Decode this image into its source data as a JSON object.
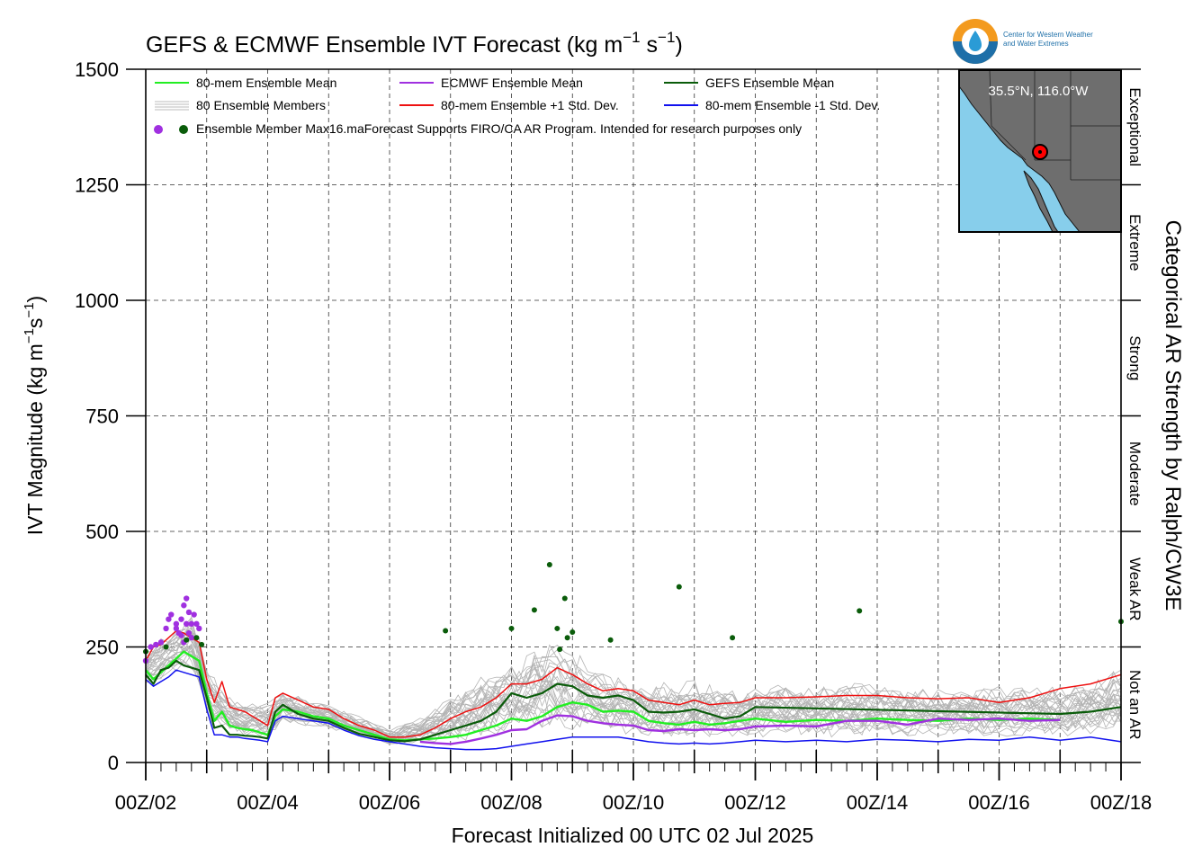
{
  "chart_data": {
    "type": "line",
    "title_text": "GEFS & ECMWF Ensemble IVT Forecast (kg m",
    "title_sup1": "−1",
    "title_mid": " s",
    "title_sup2": "−1",
    "title_end": ")",
    "ylabel_text": "IVT Magnitude (kg m",
    "ylabel_sup1": "−1",
    "ylabel_mid": "s",
    "ylabel_sup2": "−1",
    "ylabel_end": ")",
    "xlabel": "Forecast Initialized 00 UTC 02 Jul 2025",
    "right_axis_label": "Categorical AR Strength by Ralph/CW3E",
    "x_start": "2025-07-02T00Z",
    "x_end": "2025-07-18T00Z",
    "ylim": [
      0,
      1500
    ],
    "y_ticks": [
      0,
      250,
      500,
      750,
      1000,
      1250,
      1500
    ],
    "y_tick_labels": [
      "0",
      "250",
      "500",
      "750",
      "1000",
      "1250",
      "1500"
    ],
    "x_tick_days": [
      2,
      4,
      6,
      8,
      10,
      12,
      14,
      16,
      18
    ],
    "x_tick_labels": [
      "00Z/02",
      "00Z/04",
      "00Z/06",
      "00Z/08",
      "00Z/10",
      "00Z/12",
      "00Z/14",
      "00Z/16",
      "00Z/18"
    ],
    "grid": true,
    "categories": [
      {
        "label": "Not an AR",
        "min": 0,
        "max": 250
      },
      {
        "label": "Weak AR",
        "min": 250,
        "max": 500
      },
      {
        "label": "Moderate",
        "min": 500,
        "max": 750
      },
      {
        "label": "Strong",
        "min": 750,
        "max": 1000
      },
      {
        "label": "Extreme",
        "min": 1000,
        "max": 1250
      },
      {
        "label": "Exceptional",
        "min": 1250,
        "max": 1500
      }
    ],
    "legend": {
      "placement": "top-left",
      "items": [
        {
          "label": "80-mem Ensemble Mean",
          "color": "#22ee22",
          "kind": "line"
        },
        {
          "label": "ECMWF Ensemble Mean",
          "color": "#a030e0",
          "kind": "line"
        },
        {
          "label": "GEFS Ensemble Mean",
          "color": "#0a5c0a",
          "kind": "line"
        },
        {
          "label": "80 Ensemble Members",
          "color": "#aaaaaa",
          "kind": "multiline"
        },
        {
          "label": "80-mem Ensemble +1 Std. Dev.",
          "color": "#ee1111",
          "kind": "line"
        },
        {
          "label": "80-mem Ensemble -1 Std. Dev.",
          "color": "#1111ee",
          "kind": "line"
        }
      ],
      "max_label": "Ensemble Member Max",
      "note": "16.maForecast Supports FIRO/CA AR Program. Intended for research purposes only"
    },
    "location_label": "35.5°N, 116.0°W",
    "logo_text_1": "Center for Western Weather",
    "logo_text_2": "and Water Extremes",
    "series": [
      {
        "name": "80-mem Ensemble Mean",
        "color": "#22ee22",
        "x": [
          2,
          2.125,
          2.25,
          2.375,
          2.5,
          2.625,
          2.75,
          2.875,
          3,
          3.125,
          3.25,
          3.375,
          3.5,
          3.625,
          3.75,
          3.875,
          4,
          4.125,
          4.25,
          4.5,
          4.75,
          5,
          5.25,
          5.5,
          5.75,
          6,
          6.25,
          6.5,
          6.75,
          7,
          7.25,
          7.5,
          7.75,
          8,
          8.25,
          8.5,
          8.75,
          9,
          9.25,
          9.5,
          9.75,
          10,
          10.25,
          10.5,
          10.75,
          11,
          11.25,
          11.5,
          11.75,
          12,
          12.5,
          13,
          13.5,
          14,
          14.5,
          15,
          15.5,
          16,
          16.5,
          17
        ],
        "y": [
          200,
          180,
          195,
          210,
          225,
          240,
          230,
          220,
          150,
          90,
          110,
          80,
          75,
          72,
          70,
          65,
          60,
          100,
          115,
          110,
          100,
          95,
          80,
          70,
          60,
          50,
          48,
          50,
          52,
          55,
          60,
          70,
          80,
          95,
          90,
          100,
          120,
          130,
          125,
          110,
          112,
          110,
          90,
          85,
          82,
          88,
          82,
          85,
          90,
          95,
          88,
          92,
          90,
          95,
          92,
          90,
          95,
          92,
          95,
          92
        ]
      },
      {
        "name": "ECMWF Ensemble Mean",
        "color": "#a030e0",
        "x": [
          6.5,
          6.75,
          7,
          7.25,
          7.5,
          7.75,
          8,
          8.25,
          8.5,
          8.75,
          9,
          9.25,
          9.5,
          9.75,
          10,
          10.25,
          10.5,
          10.75,
          11,
          11.25,
          11.5,
          11.75,
          12,
          12.5,
          13,
          13.5,
          14,
          14.5,
          15,
          15.5,
          16,
          16.5,
          17
        ],
        "y": [
          45,
          42,
          40,
          45,
          52,
          60,
          70,
          72,
          90,
          102,
          100,
          90,
          85,
          82,
          80,
          70,
          68,
          72,
          70,
          72,
          70,
          72,
          78,
          80,
          78,
          90,
          90,
          82,
          95,
          92,
          95,
          90,
          92
        ]
      },
      {
        "name": "GEFS Ensemble Mean",
        "color": "#0a5c0a",
        "x": [
          2,
          2.125,
          2.25,
          2.375,
          2.5,
          2.625,
          2.75,
          2.875,
          3,
          3.125,
          3.25,
          3.375,
          3.5,
          3.625,
          3.75,
          3.875,
          4,
          4.125,
          4.25,
          4.5,
          4.75,
          5,
          5.25,
          5.5,
          5.75,
          6,
          6.25,
          6.5,
          6.75,
          7,
          7.25,
          7.5,
          7.75,
          8,
          8.25,
          8.5,
          8.75,
          9,
          9.25,
          9.5,
          9.75,
          10,
          10.25,
          10.5,
          10.75,
          11,
          11.25,
          11.5,
          11.75,
          12,
          17,
          17.5,
          18
        ],
        "y": [
          190,
          170,
          200,
          205,
          220,
          210,
          205,
          200,
          140,
          75,
          80,
          60,
          60,
          58,
          57,
          55,
          52,
          110,
          125,
          105,
          95,
          90,
          75,
          62,
          55,
          48,
          46,
          50,
          60,
          70,
          80,
          90,
          110,
          150,
          140,
          150,
          170,
          165,
          145,
          140,
          145,
          135,
          110,
          108,
          110,
          115,
          105,
          95,
          100,
          120,
          105,
          110,
          120
        ]
      },
      {
        "name": "80-mem Ensemble +1 Std. Dev.",
        "color": "#ee1111",
        "x": [
          2,
          2.125,
          2.25,
          2.375,
          2.5,
          2.625,
          2.75,
          2.875,
          3,
          3.125,
          3.25,
          3.375,
          3.5,
          3.625,
          3.75,
          3.875,
          4,
          4.125,
          4.25,
          4.5,
          4.75,
          5,
          5.25,
          5.5,
          5.75,
          6,
          6.25,
          6.5,
          6.75,
          7,
          7.25,
          7.5,
          7.75,
          8,
          8.25,
          8.5,
          8.75,
          9,
          9.25,
          9.5,
          9.75,
          10,
          10.25,
          10.5,
          10.75,
          11,
          11.25,
          11.5,
          11.75,
          12,
          12.5,
          13,
          13.5,
          14,
          14.5,
          15,
          15.5,
          16,
          16.5,
          17,
          17.5,
          18
        ],
        "y": [
          220,
          250,
          255,
          270,
          285,
          280,
          270,
          260,
          180,
          130,
          175,
          120,
          115,
          110,
          100,
          90,
          80,
          140,
          150,
          135,
          120,
          115,
          95,
          80,
          70,
          55,
          55,
          60,
          75,
          95,
          110,
          120,
          140,
          170,
          170,
          180,
          205,
          190,
          170,
          155,
          160,
          155,
          135,
          130,
          125,
          135,
          125,
          128,
          130,
          140,
          140,
          142,
          145,
          145,
          140,
          138,
          140,
          130,
          140,
          160,
          170,
          190
        ]
      },
      {
        "name": "80-mem Ensemble -1 Std. Dev.",
        "color": "#1111ee",
        "x": [
          2,
          2.125,
          2.25,
          2.375,
          2.5,
          2.625,
          2.75,
          2.875,
          3,
          3.125,
          3.25,
          3.375,
          3.5,
          3.625,
          3.75,
          3.875,
          4,
          4.125,
          4.25,
          4.5,
          4.75,
          5,
          5.25,
          5.5,
          5.75,
          6,
          6.25,
          6.5,
          6.75,
          7,
          7.25,
          7.5,
          7.75,
          8,
          8.25,
          8.5,
          8.75,
          9,
          9.25,
          9.5,
          9.75,
          10,
          10.25,
          10.5,
          10.75,
          11,
          11.25,
          11.5,
          11.75,
          12,
          12.5,
          13,
          13.5,
          14,
          14.5,
          15,
          15.5,
          16,
          16.5,
          17,
          17.5,
          18
        ],
        "y": [
          180,
          165,
          175,
          185,
          200,
          195,
          190,
          185,
          115,
          60,
          60,
          55,
          55,
          52,
          50,
          48,
          45,
          90,
          100,
          95,
          90,
          85,
          70,
          58,
          50,
          45,
          40,
          35,
          32,
          30,
          28,
          28,
          30,
          35,
          40,
          45,
          50,
          55,
          55,
          55,
          55,
          50,
          45,
          42,
          40,
          42,
          40,
          42,
          45,
          48,
          45,
          48,
          45,
          50,
          48,
          45,
          50,
          48,
          55,
          48,
          55,
          45
        ]
      }
    ],
    "member_envelope": {
      "name": "80 Ensemble Members",
      "x": [
        2,
        2.5,
        2.75,
        3,
        3.25,
        3.5,
        4,
        4.25,
        5,
        5.5,
        6,
        6.5,
        7,
        7.5,
        8,
        8.5,
        8.75,
        9,
        9.5,
        10,
        10.5,
        11,
        11.5,
        12,
        12.5,
        13,
        13.5,
        14,
        14.5,
        15,
        15.5,
        16,
        16.5,
        17,
        17.5,
        18
      ],
      "ymax": [
        260,
        320,
        360,
        230,
        180,
        150,
        150,
        170,
        140,
        110,
        80,
        110,
        170,
        220,
        260,
        300,
        310,
        280,
        230,
        200,
        200,
        210,
        190,
        190,
        200,
        190,
        200,
        200,
        190,
        180,
        190,
        190,
        190,
        190,
        200,
        240
      ],
      "ymin": [
        150,
        170,
        170,
        80,
        50,
        40,
        30,
        70,
        60,
        45,
        30,
        25,
        20,
        15,
        20,
        25,
        30,
        30,
        30,
        30,
        25,
        25,
        28,
        30,
        30,
        30,
        30,
        30,
        30,
        35,
        30,
        30,
        35,
        30,
        35,
        30
      ]
    },
    "ecmwf_max": {
      "x": [
        2.0,
        2.083,
        2.167,
        2.25,
        2.333,
        2.375,
        2.417,
        2.5,
        2.5,
        2.542,
        2.583,
        2.583,
        2.625,
        2.625,
        2.667,
        2.667,
        2.708,
        2.708,
        2.75,
        2.75,
        2.792,
        2.833,
        2.875
      ],
      "y": [
        220,
        250,
        255,
        260,
        290,
        310,
        320,
        300,
        290,
        280,
        275,
        310,
        260,
        340,
        300,
        355,
        280,
        325,
        270,
        300,
        320,
        300,
        290
      ]
    },
    "gefs_max": {
      "x": [
        2.0,
        2.333,
        2.667,
        2.833,
        2.917,
        6.917,
        8.0,
        8.375,
        8.625,
        8.75,
        8.792,
        8.875,
        8.917,
        9.0,
        9.625,
        10.75,
        11.625,
        13.708,
        18.0
      ],
      "y": [
        240,
        250,
        265,
        270,
        255,
        285,
        290,
        330,
        428,
        290,
        245,
        355,
        270,
        282,
        265,
        380,
        270,
        328,
        305
      ]
    }
  }
}
